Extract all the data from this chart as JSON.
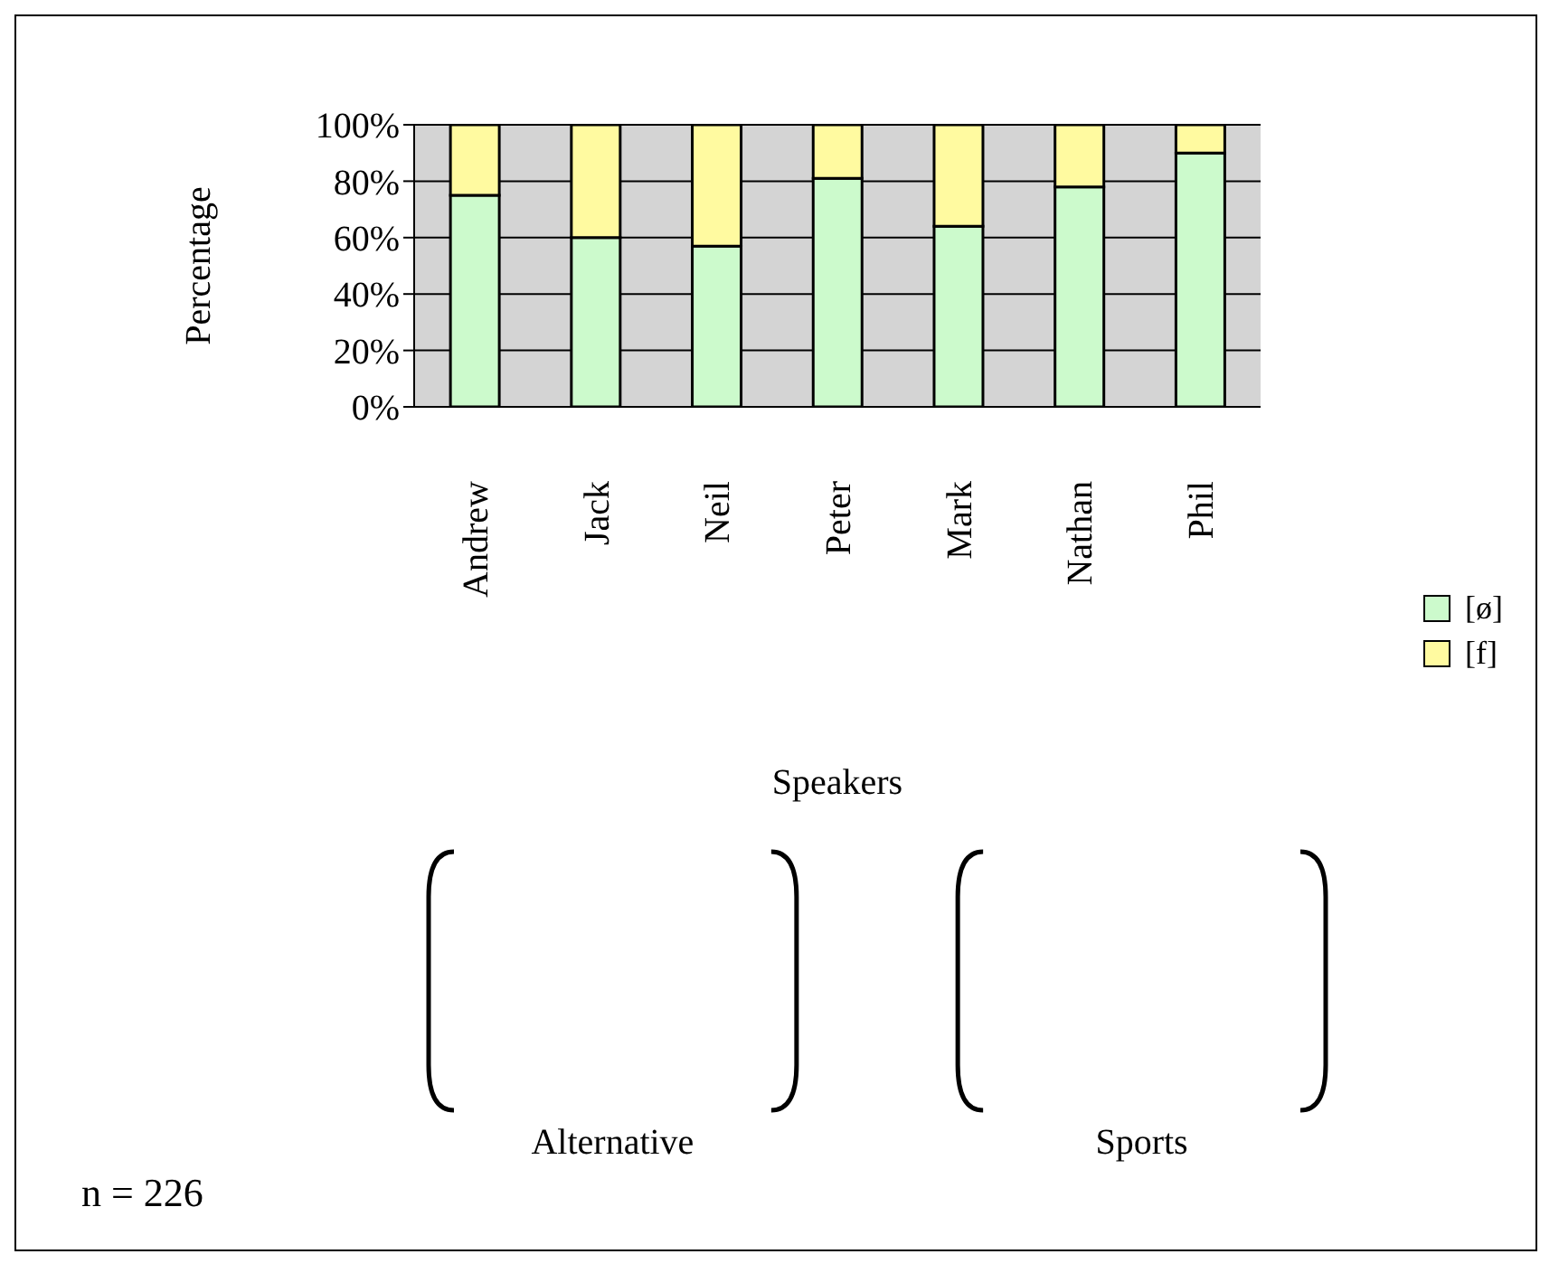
{
  "chart_data": {
    "type": "bar",
    "stacked": true,
    "xlabel": "Speakers",
    "ylabel": "Percentage",
    "categories": [
      "Andrew",
      "Jack",
      "Neil",
      "Peter",
      "Mark",
      "Nathan",
      "Phil"
    ],
    "series": [
      {
        "name": "[ø]",
        "color": "#ccfacc",
        "values": [
          75,
          60,
          57,
          81,
          64,
          78,
          90
        ]
      },
      {
        "name": "[f]",
        "color": "#fffaa0",
        "values": [
          25,
          40,
          43,
          19,
          36,
          22,
          10
        ]
      }
    ],
    "ylim": [
      0,
      100
    ],
    "yticks": [
      {
        "value": 0,
        "label": "0%"
      },
      {
        "value": 20,
        "label": "20%"
      },
      {
        "value": 40,
        "label": "40%"
      },
      {
        "value": 60,
        "label": "60%"
      },
      {
        "value": 80,
        "label": "80%"
      },
      {
        "value": 100,
        "label": "100%"
      }
    ],
    "grid": "y",
    "legend": "right",
    "annotations": [
      "Alternative",
      "Sports",
      "n = 226"
    ]
  }
}
